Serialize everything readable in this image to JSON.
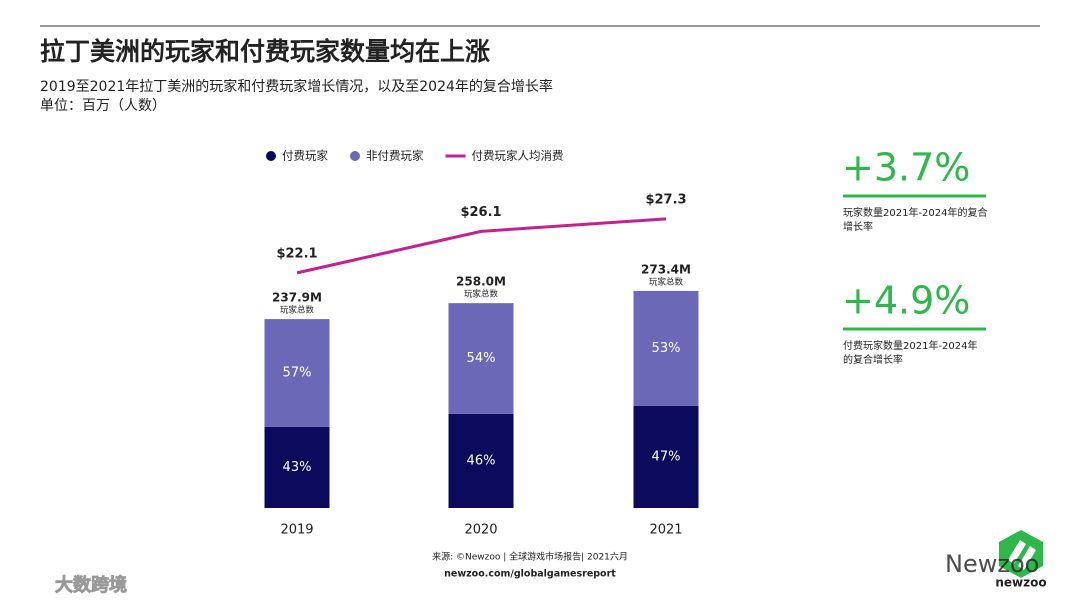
{
  "header": {
    "title": "拉丁美洲的玩家和付费玩家数量均在上涨",
    "subtitle": "2019至2021年拉丁美洲的玩家和付费玩家增长情况，以及至2024年的复合增长率",
    "unit": "单位：百万（人数）"
  },
  "chart_data": {
    "type": "bar",
    "stacked": true,
    "categories": [
      "2019",
      "2020",
      "2021"
    ],
    "series": [
      {
        "name": "付费玩家",
        "color": "#0b0a5c",
        "values": [
          43,
          46,
          47
        ],
        "value_labels": [
          "43%",
          "46%",
          "47%"
        ]
      },
      {
        "name": "非付费玩家",
        "color": "#6c68b8",
        "values": [
          57,
          54,
          53
        ],
        "value_labels": [
          "57%",
          "54%",
          "53%"
        ]
      },
      {
        "name": "付费玩家人均消费",
        "type": "line",
        "color": "#c2228f",
        "values": [
          22.1,
          26.1,
          27.3
        ],
        "value_labels": [
          "$22.1",
          "$26.1",
          "$27.3"
        ]
      }
    ],
    "totals": {
      "label": "玩家总数",
      "values": [
        237.9,
        258.0,
        273.4
      ],
      "value_labels": [
        "237.9M",
        "258.0M",
        "273.4M"
      ]
    }
  },
  "highlights": [
    {
      "value": "+3.7%",
      "lines": [
        "玩家数量2021年-2024年的复合",
        "增长率"
      ]
    },
    {
      "value": "+4.9%",
      "lines": [
        "付费玩家数量2021年-2024年",
        "的复合增长率"
      ]
    }
  ],
  "footer": {
    "source": "来源: ©Newzoo | 全球游戏市场报告| 2021六月",
    "url": "newzoo.com/globalgamesreport",
    "logo": "newzoo"
  },
  "watermarks": [
    "大数跨境",
    "Newzoo"
  ]
}
